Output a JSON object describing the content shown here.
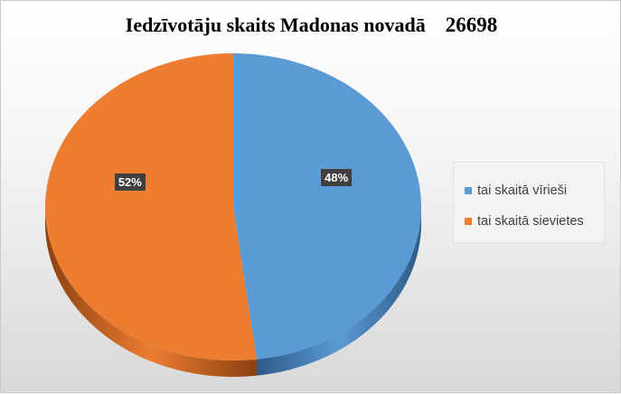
{
  "chart_data": {
    "type": "pie",
    "title": "Iedzīvotāju skaits Madonas novadā",
    "title_number": "26698",
    "categories": [
      "tai skaitā vīrieši",
      "tai skaitā sievietes"
    ],
    "values": [
      48,
      52
    ],
    "data_labels": [
      "48%",
      "52%"
    ],
    "colors": [
      "#5b9bd5",
      "#ed7d31"
    ],
    "legend_position": "right",
    "style": "3d"
  }
}
